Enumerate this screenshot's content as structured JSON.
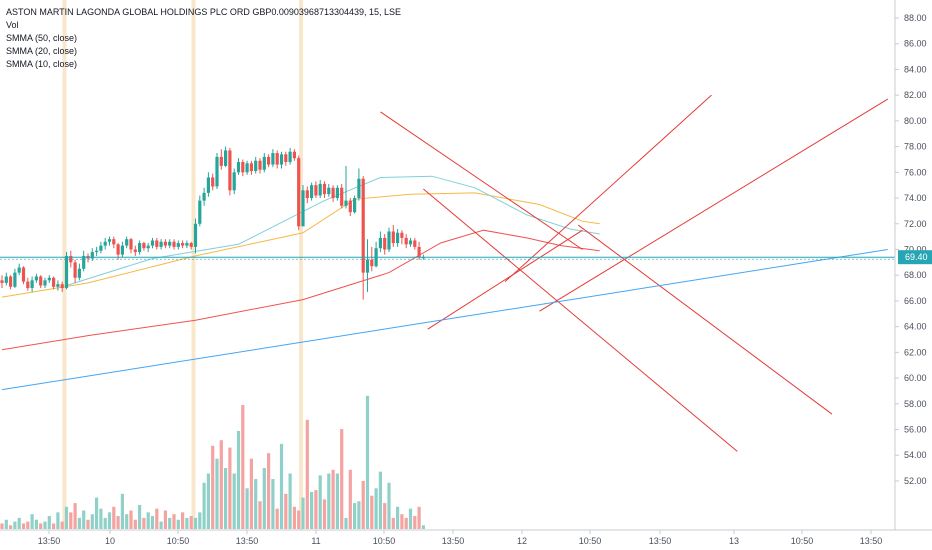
{
  "chart_data": {
    "type": "candlestick",
    "title": "ASTON MARTIN LAGONDA GLOBAL HOLDINGS PLC ORD GBP0.00903968713304439, 15, LSE",
    "legend": [
      "Vol",
      "SMMA (50, close)",
      "SMMA (20, close)",
      "SMMA (10, close)"
    ],
    "last_price": "69.40",
    "ylim": [
      51.5,
      89
    ],
    "y_ticks": [
      "88.00",
      "86.00",
      "84.00",
      "82.00",
      "80.00",
      "78.00",
      "76.00",
      "74.00",
      "72.00",
      "70.00",
      "68.00",
      "66.00",
      "64.00",
      "62.00",
      "60.00",
      "58.00",
      "56.00",
      "54.00",
      "52.00"
    ],
    "x_ticks": [
      "13:50",
      "10",
      "10:50",
      "13:50",
      "11",
      "10:50",
      "13:50",
      "12",
      "10:50",
      "13:50",
      "13",
      "10:50",
      "13:50"
    ],
    "session_dividers": [
      "10",
      "11",
      "12"
    ],
    "colors": {
      "up": "#26a69a",
      "down": "#ef5350",
      "vol_up": "#8fd1c8",
      "vol_down": "#f4a3a0",
      "smma50": "#ef5350",
      "smma20": "#f5b942",
      "smma10": "#7fcfdc",
      "trend_red": "#e53935",
      "trend_blue": "#42a5f5",
      "last_price_line": "#26a6b4",
      "session_divider": "#f9e7cc"
    },
    "candles_first_day": [
      [
        67.6,
        67.4,
        68.0,
        67.0
      ],
      [
        67.4,
        67.9,
        68.2,
        67.2
      ],
      [
        67.9,
        67.1,
        68.0,
        66.9
      ],
      [
        67.1,
        68.2,
        68.5,
        67.0
      ],
      [
        68.2,
        68.6,
        68.9,
        68.0
      ],
      [
        68.6,
        67.5,
        68.7,
        67.3
      ],
      [
        67.5,
        67.0,
        67.8,
        66.8
      ],
      [
        67.0,
        67.6,
        67.9,
        66.7
      ],
      [
        67.6,
        67.9,
        68.1,
        67.4
      ],
      [
        67.9,
        67.2,
        68.0,
        67.0
      ],
      [
        67.2,
        67.6,
        67.8,
        67.0
      ],
      [
        67.6,
        67.8,
        68.0,
        67.4
      ],
      [
        67.8,
        67.1,
        67.9,
        66.9
      ],
      [
        67.1,
        67.3,
        67.6,
        66.8
      ],
      [
        67.3,
        67.0,
        67.5,
        66.7
      ]
    ],
    "candles_day_2": [
      [
        67.0,
        69.5,
        69.8,
        66.9
      ],
      [
        69.5,
        69.0,
        69.9,
        68.6
      ],
      [
        69.0,
        67.8,
        69.2,
        67.4
      ],
      [
        67.8,
        68.5,
        68.9,
        67.6
      ],
      [
        68.5,
        69.5,
        69.9,
        68.3
      ],
      [
        69.5,
        69.3,
        69.7,
        69.0
      ],
      [
        69.3,
        69.8,
        70.1,
        69.1
      ],
      [
        69.8,
        69.9,
        70.2,
        69.5
      ],
      [
        69.9,
        70.3,
        70.6,
        69.7
      ],
      [
        70.3,
        70.6,
        70.9,
        70.0
      ],
      [
        70.6,
        70.8,
        71.0,
        70.3
      ],
      [
        70.8,
        70.4,
        71.0,
        70.1
      ],
      [
        70.4,
        69.6,
        70.5,
        69.2
      ],
      [
        69.6,
        70.3,
        70.6,
        69.4
      ],
      [
        70.3,
        70.8,
        71.0,
        70.1
      ],
      [
        70.8,
        70.0,
        70.9,
        69.7
      ],
      [
        70.0,
        69.8,
        70.3,
        69.5
      ],
      [
        69.8,
        70.5,
        70.7,
        69.6
      ],
      [
        70.5,
        70.1,
        70.6,
        69.9
      ],
      [
        70.1,
        70.3,
        70.5,
        69.8
      ],
      [
        70.3,
        70.7,
        70.9,
        70.1
      ],
      [
        70.7,
        70.2,
        70.9,
        70.0
      ],
      [
        70.2,
        70.6,
        70.8,
        70.0
      ],
      [
        70.6,
        70.3,
        70.8,
        70.1
      ],
      [
        70.3,
        70.6,
        70.8,
        70.1
      ],
      [
        70.6,
        70.2,
        70.8,
        70.0
      ],
      [
        70.2,
        70.5,
        70.7,
        70.0
      ],
      [
        70.5,
        70.3,
        70.7,
        70.1
      ],
      [
        70.3,
        70.5,
        70.7,
        70.1
      ],
      [
        70.5,
        70.2,
        70.6,
        70.0
      ]
    ],
    "candles_day_3": [
      [
        70.2,
        72.0,
        72.4,
        69.7
      ],
      [
        72.0,
        73.8,
        74.2,
        71.8
      ],
      [
        73.8,
        74.4,
        74.8,
        73.4
      ],
      [
        74.4,
        75.6,
        76.0,
        74.1
      ],
      [
        75.6,
        74.9,
        75.9,
        74.6
      ],
      [
        74.9,
        77.2,
        77.5,
        74.7
      ],
      [
        77.2,
        76.5,
        77.8,
        76.2
      ],
      [
        76.5,
        77.7,
        78.0,
        76.4
      ],
      [
        77.7,
        74.6,
        77.9,
        74.2
      ],
      [
        74.6,
        76.0,
        76.3,
        74.3
      ],
      [
        76.0,
        76.8,
        77.1,
        75.8
      ],
      [
        76.8,
        76.0,
        77.0,
        75.7
      ],
      [
        76.0,
        76.7,
        76.9,
        75.8
      ],
      [
        76.7,
        76.1,
        76.9,
        75.8
      ],
      [
        76.1,
        76.9,
        77.2,
        75.9
      ],
      [
        76.9,
        76.2,
        77.1,
        75.9
      ],
      [
        76.2,
        77.2,
        77.5,
        76.0
      ],
      [
        77.2,
        76.6,
        77.4,
        76.4
      ],
      [
        76.6,
        77.5,
        77.8,
        76.4
      ],
      [
        77.5,
        76.6,
        77.7,
        76.3
      ],
      [
        76.6,
        77.4,
        77.6,
        76.3
      ],
      [
        77.4,
        76.8,
        77.6,
        76.5
      ],
      [
        76.8,
        77.6,
        77.9,
        76.6
      ],
      [
        77.6,
        77.1,
        77.8,
        76.9
      ],
      [
        77.1,
        71.8,
        77.3,
        71.5
      ]
    ],
    "candles_day_4": [
      [
        71.8,
        74.6,
        75.0,
        73.0
      ],
      [
        74.6,
        74.0,
        74.9,
        73.6
      ],
      [
        74.0,
        75.0,
        75.2,
        73.8
      ],
      [
        75.0,
        74.2,
        75.3,
        74.0
      ],
      [
        74.2,
        75.1,
        75.4,
        74.0
      ],
      [
        75.1,
        74.3,
        75.3,
        74.0
      ],
      [
        74.3,
        74.8,
        75.1,
        74.1
      ],
      [
        74.8,
        74.0,
        75.0,
        73.7
      ],
      [
        74.0,
        74.8,
        75.0,
        73.8
      ],
      [
        74.8,
        73.4,
        75.1,
        73.2
      ],
      [
        73.4,
        73.8,
        76.5,
        73.2
      ],
      [
        73.8,
        72.9,
        74.0,
        72.6
      ],
      [
        72.9,
        74.0,
        74.2,
        72.8
      ],
      [
        74.0,
        75.5,
        76.3,
        73.8
      ],
      [
        75.5,
        68.2,
        75.7,
        66.1
      ],
      [
        68.2,
        69.2,
        70.8,
        66.7
      ],
      [
        69.2,
        68.7,
        70.2,
        68.3
      ],
      [
        68.7,
        70.1,
        70.6,
        68.6
      ],
      [
        70.1,
        70.9,
        71.4,
        69.8
      ],
      [
        70.9,
        70.0,
        71.2,
        69.6
      ],
      [
        70.0,
        71.4,
        71.7,
        69.8
      ],
      [
        71.4,
        70.5,
        71.9,
        70.2
      ],
      [
        70.5,
        71.3,
        71.6,
        70.2
      ],
      [
        71.3,
        70.9,
        71.5,
        70.4
      ],
      [
        70.9,
        70.4,
        71.2,
        70.1
      ],
      [
        70.4,
        70.7,
        70.9,
        70.2
      ],
      [
        70.7,
        70.2,
        70.9,
        70.0
      ],
      [
        70.2,
        69.4,
        70.6,
        69.2
      ],
      [
        69.4,
        69.4,
        69.6,
        69.2
      ]
    ],
    "volumes_first_day": [
      3,
      5,
      2,
      4,
      6,
      3,
      4,
      8,
      5,
      3,
      4,
      7,
      3,
      9,
      4
    ],
    "volumes_day_2": [
      12,
      9,
      14,
      6,
      10,
      5,
      8,
      17,
      11,
      6,
      9,
      12,
      7,
      19,
      8,
      10,
      5,
      13,
      6,
      9,
      7,
      11,
      4,
      10,
      6,
      8,
      5,
      9,
      6,
      7
    ],
    "volumes_day_3": [
      6,
      9,
      25,
      30,
      45,
      38,
      48,
      33,
      44,
      30,
      53,
      67,
      22,
      38,
      27,
      15,
      33,
      41,
      27,
      11,
      46,
      19,
      30,
      12,
      10
    ],
    "volumes_day_4": [
      17,
      59,
      20,
      21,
      29,
      16,
      30,
      32,
      30,
      54,
      6,
      32,
      14,
      15,
      26,
      72,
      18,
      22,
      31,
      14,
      25,
      6,
      12,
      8,
      6,
      11,
      7,
      12,
      2
    ],
    "smma50": [
      [
        0,
        62.2
      ],
      [
        20,
        63.3
      ],
      [
        45,
        64.5
      ],
      [
        70,
        66.1
      ],
      [
        90,
        68.2
      ],
      [
        102,
        70.5
      ],
      [
        112,
        71.5
      ],
      [
        122,
        70.9
      ],
      [
        130,
        70.3
      ],
      [
        139,
        69.9
      ]
    ],
    "smma20": [
      [
        0,
        66.3
      ],
      [
        20,
        67.4
      ],
      [
        45,
        69.5
      ],
      [
        70,
        71.3
      ],
      [
        82,
        73.9
      ],
      [
        95,
        74.3
      ],
      [
        110,
        74.4
      ],
      [
        125,
        73.5
      ],
      [
        135,
        72.2
      ],
      [
        139,
        72.0
      ]
    ],
    "smma10": [
      [
        15,
        67.2
      ],
      [
        35,
        69.3
      ],
      [
        55,
        70.4
      ],
      [
        75,
        73.8
      ],
      [
        88,
        75.6
      ],
      [
        100,
        75.7
      ],
      [
        110,
        74.8
      ],
      [
        122,
        72.7
      ],
      [
        132,
        71.6
      ],
      [
        139,
        71.2
      ]
    ],
    "trendlines_red": [
      [
        [
          88,
          80.7
        ],
        [
          135,
          70.0
        ]
      ],
      [
        [
          98,
          74.7
        ],
        [
          171,
          54.3
        ]
      ],
      [
        [
          99,
          63.8
        ],
        [
          135,
          71.5
        ]
      ],
      [
        [
          117,
          67.5
        ],
        [
          165,
          82.0
        ]
      ],
      [
        [
          134,
          71.9
        ],
        [
          193,
          57.2
        ]
      ],
      [
        [
          125,
          65.2
        ],
        [
          206,
          81.7
        ]
      ]
    ],
    "trendlines_blue": [
      [
        [
          0,
          59.1
        ],
        [
          206,
          70.0
        ]
      ]
    ]
  }
}
